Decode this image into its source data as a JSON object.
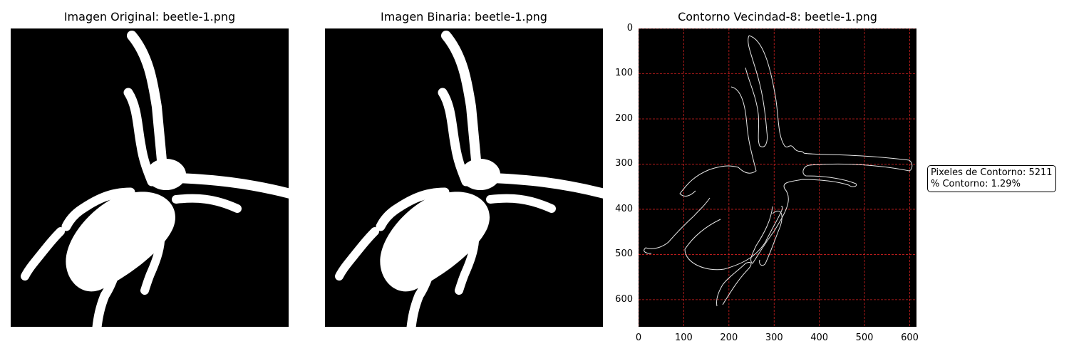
{
  "panels": [
    {
      "title": "Imagen Original: beetle-1.png"
    },
    {
      "title": "Imagen Binaria: beetle-1.png"
    },
    {
      "title": "Contorno Vecindad-8: beetle-1.png"
    }
  ],
  "contour_axes": {
    "x_ticks": [
      "0",
      "100",
      "200",
      "300",
      "400",
      "500",
      "600"
    ],
    "y_ticks": [
      "0",
      "100",
      "200",
      "300",
      "400",
      "500",
      "600"
    ],
    "grid": true,
    "grid_color": "#d22020"
  },
  "info": {
    "pixels_line": "Pixeles de Contorno: 5211",
    "percent_line": "% Contorno: 1.29%"
  },
  "colors": {
    "background": "#000000",
    "foreground": "#ffffff",
    "contour": "#e6e6e6"
  }
}
